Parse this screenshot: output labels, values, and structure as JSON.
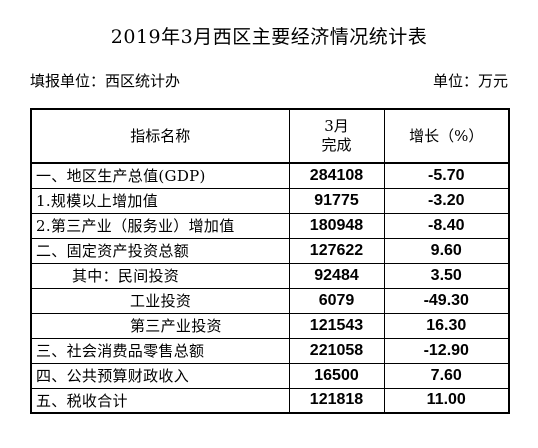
{
  "title": "2019年3月西区主要经济情况统计表",
  "reporter": "填报单位：西区统计办",
  "unit": "单位：万元",
  "table": {
    "headers": {
      "name": "指标名称",
      "value_line1": "3月",
      "value_line2": "完成",
      "growth": "增长（%）"
    },
    "rows": [
      {
        "name": "一、地区生产总值(GDP)",
        "value": "284108",
        "growth": "-5.70"
      },
      {
        "name": "1.规模以上增加值",
        "value": "91775",
        "growth": "-3.20"
      },
      {
        "name": "2.第三产业（服务业）增加值",
        "value": "180948",
        "growth": "-8.40"
      },
      {
        "name": "二、固定资产投资总额",
        "value": "127622",
        "growth": "9.60"
      },
      {
        "name": "其中：民间投资",
        "value": "92484",
        "growth": "3.50"
      },
      {
        "name": "工业投资",
        "value": "6079",
        "growth": "-49.30"
      },
      {
        "name": "第三产业投资",
        "value": "121543",
        "growth": "16.30"
      },
      {
        "name": "三、社会消费品零售总额",
        "value": "221058",
        "growth": "-12.90"
      },
      {
        "name": "四、公共预算财政收入",
        "value": "16500",
        "growth": "7.60"
      },
      {
        "name": "五、税收合计",
        "value": "121818",
        "growth": "11.00"
      }
    ]
  }
}
